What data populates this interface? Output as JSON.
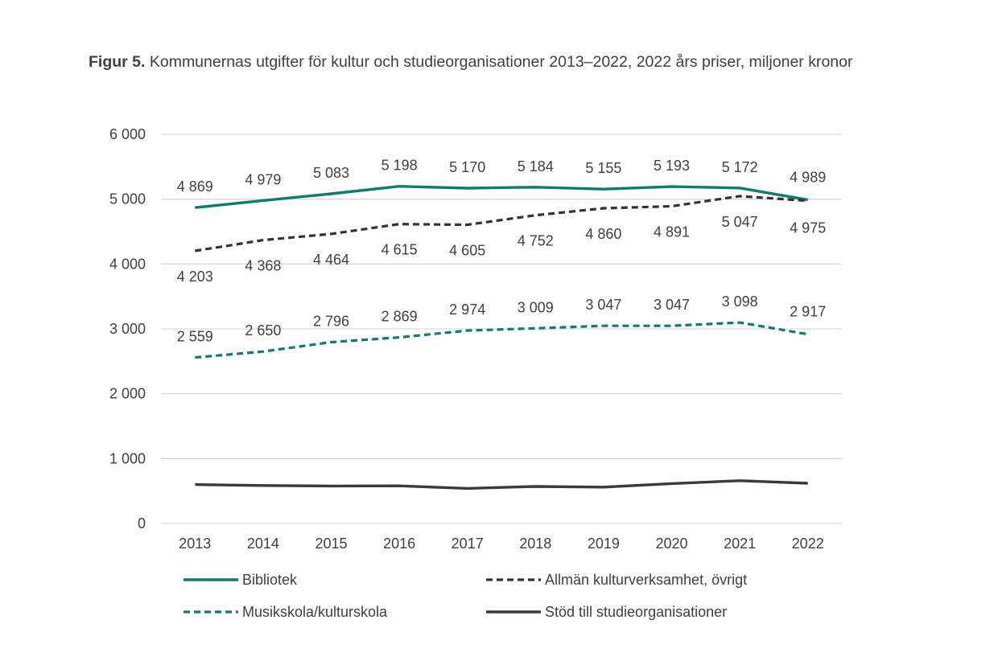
{
  "title": {
    "prefix": "Figur 5.",
    "text": "Kommunernas utgifter för kultur och studieorganisationer 2013–2022, 2022 års priser, miljoner kronor"
  },
  "chart_data": {
    "type": "line",
    "title": "Figur 5. Kommunernas utgifter för kultur och studieorganisationer 2013–2022, 2022 års priser, miljoner kronor",
    "categories": [
      "2013",
      "2014",
      "2015",
      "2016",
      "2017",
      "2018",
      "2019",
      "2020",
      "2021",
      "2022"
    ],
    "ylim": [
      0,
      6000
    ],
    "yticks": [
      0,
      1000,
      2000,
      3000,
      4000,
      5000,
      6000
    ],
    "ytick_labels": [
      "0",
      "1 000",
      "2 000",
      "3 000",
      "4 000",
      "5 000",
      "6 000"
    ],
    "grid": true,
    "legend_position": "bottom",
    "series": [
      {
        "name": "Bibliotek",
        "color": "#127A6E",
        "style": "solid",
        "values": [
          4869,
          4979,
          5083,
          5198,
          5170,
          5184,
          5155,
          5193,
          5172,
          4989
        ],
        "labels": [
          "4 869",
          "4 979",
          "5 083",
          "5 198",
          "5 170",
          "5 184",
          "5 155",
          "5 193",
          "5 172",
          "4 989"
        ],
        "label_position": "above"
      },
      {
        "name": "Allmän kulturverksamhet, övrigt",
        "color": "#333333",
        "style": "dashed",
        "values": [
          4203,
          4368,
          4464,
          4615,
          4605,
          4752,
          4860,
          4891,
          5047,
          4975
        ],
        "labels": [
          "4 203",
          "4 368",
          "4 464",
          "4 615",
          "4 605",
          "4 752",
          "4 860",
          "4 891",
          "5 047",
          "4 975"
        ],
        "label_position": "below"
      },
      {
        "name": "Musikskola/kulturskola",
        "color": "#127A6E",
        "style": "dashed",
        "values": [
          2559,
          2650,
          2796,
          2869,
          2974,
          3009,
          3047,
          3047,
          3098,
          2917
        ],
        "labels": [
          "2 559",
          "2 650",
          "2 796",
          "2 869",
          "2 974",
          "3 009",
          "3 047",
          "3 047",
          "3 098",
          "2 917"
        ],
        "label_position": "above"
      },
      {
        "name": "Stöd till studieorganisationer",
        "color": "#3a3a3a",
        "style": "solid",
        "values": [
          600,
          585,
          578,
          580,
          540,
          570,
          560,
          615,
          660,
          620
        ],
        "labels": null,
        "label_position": "none"
      }
    ]
  }
}
